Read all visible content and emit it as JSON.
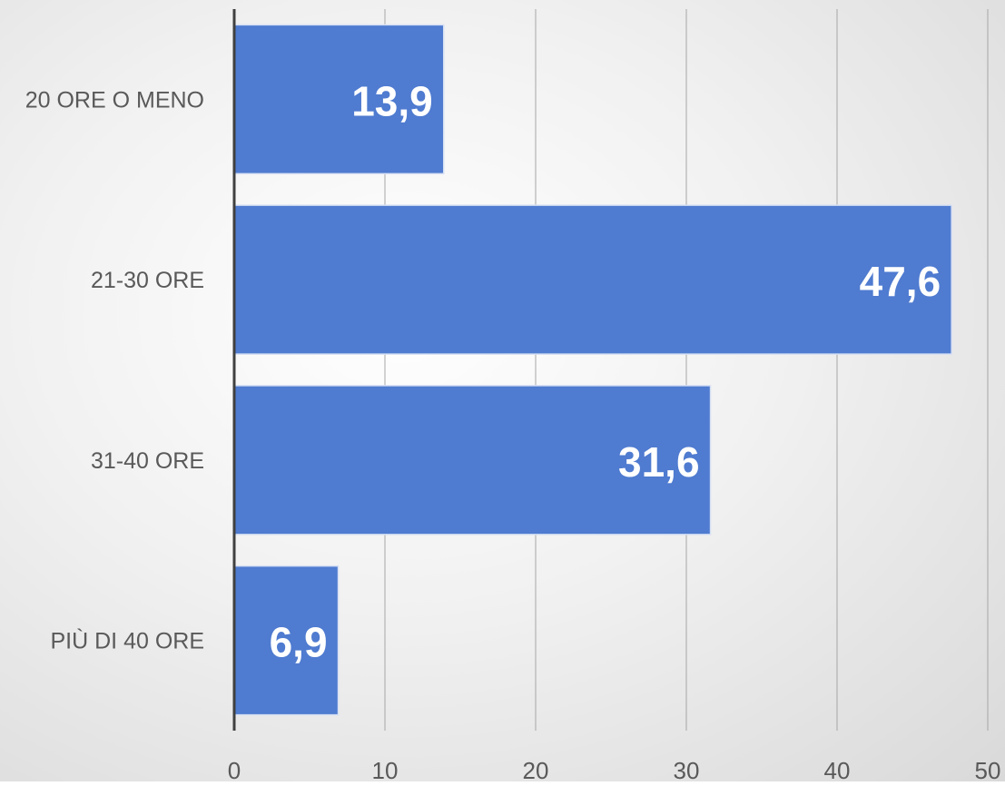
{
  "chart_data": {
    "type": "bar",
    "orientation": "horizontal",
    "title": "",
    "xlabel": "",
    "ylabel": "",
    "categories": [
      "20 ORE O MENO",
      "21-30 ORE",
      "31-40 ORE",
      "PIÙ DI 40 ORE"
    ],
    "values": [
      13.9,
      47.6,
      31.6,
      6.9
    ],
    "data_labels": [
      "13,9",
      "47,6",
      "31,6",
      "6,9"
    ],
    "xlim": [
      0,
      50
    ],
    "x_ticks": [
      0,
      10,
      20,
      30,
      40,
      50
    ],
    "x_tick_labels": [
      "0",
      "10",
      "20",
      "30",
      "40",
      "50"
    ],
    "grid": "vertical",
    "legend": "none",
    "colors": {
      "bar": "#4f7bd0",
      "bar_border": "#d6e0f3",
      "grid": "#a6a6a6",
      "axis": "#404040",
      "data_label": "#ffffff",
      "tick_label": "#595959"
    }
  }
}
